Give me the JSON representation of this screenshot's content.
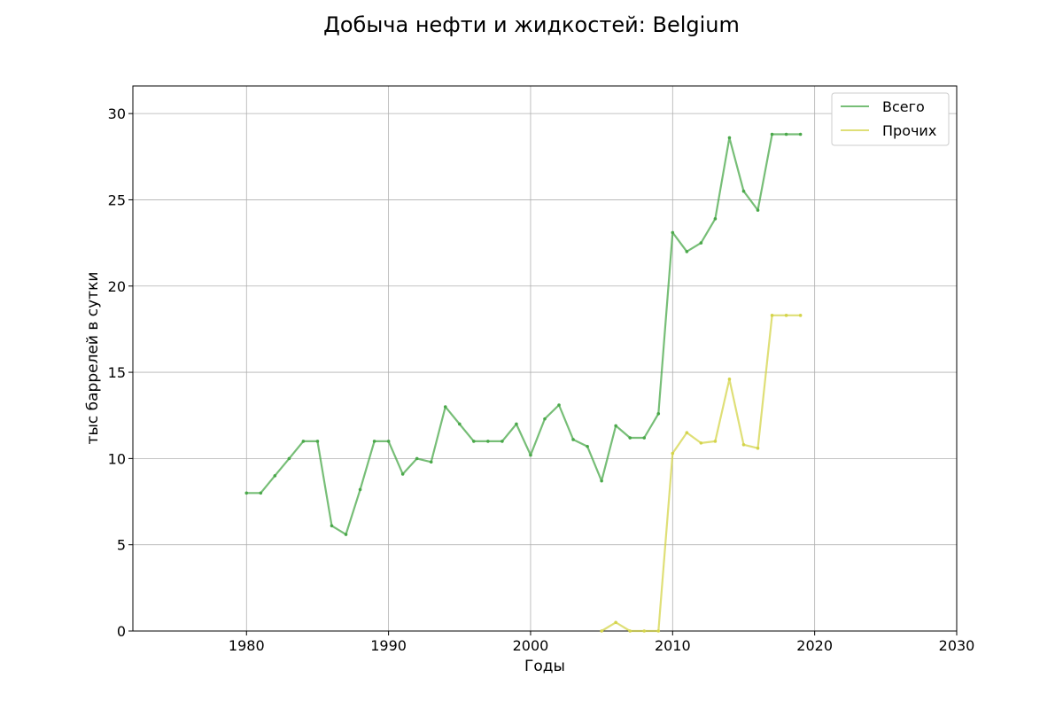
{
  "chart_data": {
    "type": "line",
    "title": "Добыча нефти и жидкостей: Belgium",
    "xlabel": "Годы",
    "ylabel": "тыс баррелей в сутки",
    "xlim": [
      1972,
      2030
    ],
    "ylim": [
      0,
      31.6
    ],
    "xticks": [
      1980,
      1990,
      2000,
      2010,
      2020,
      2030
    ],
    "yticks": [
      0,
      5,
      10,
      15,
      20,
      25,
      30
    ],
    "grid": true,
    "legend_position": "top-right",
    "series": [
      {
        "name": "Всего",
        "color": "#4aa84a",
        "x": [
          1980,
          1981,
          1982,
          1983,
          1984,
          1985,
          1986,
          1987,
          1988,
          1989,
          1990,
          1991,
          1992,
          1993,
          1994,
          1995,
          1996,
          1997,
          1998,
          1999,
          2000,
          2001,
          2002,
          2003,
          2004,
          2005,
          2006,
          2007,
          2008,
          2009,
          2010,
          2011,
          2012,
          2013,
          2014,
          2015,
          2016,
          2017,
          2018,
          2019
        ],
        "y": [
          8.0,
          8.0,
          9.0,
          10.0,
          11.0,
          11.0,
          6.1,
          5.6,
          8.2,
          11.0,
          11.0,
          9.1,
          10.0,
          9.8,
          13.0,
          12.0,
          11.0,
          11.0,
          11.0,
          12.0,
          10.2,
          12.3,
          13.1,
          11.1,
          10.7,
          8.7,
          11.9,
          11.2,
          11.2,
          12.6,
          23.1,
          22.0,
          22.5,
          23.9,
          28.6,
          25.5,
          24.4,
          28.8,
          28.8,
          28.8
        ]
      },
      {
        "name": "Прочих",
        "color": "#d4d44a",
        "x": [
          2005,
          2006,
          2007,
          2008,
          2009,
          2010,
          2011,
          2012,
          2013,
          2014,
          2015,
          2016,
          2017,
          2018,
          2019
        ],
        "y": [
          0.0,
          0.5,
          0.0,
          0.0,
          0.0,
          10.3,
          11.5,
          10.9,
          11.0,
          14.6,
          10.8,
          10.6,
          18.3,
          18.3,
          18.3
        ]
      }
    ]
  }
}
